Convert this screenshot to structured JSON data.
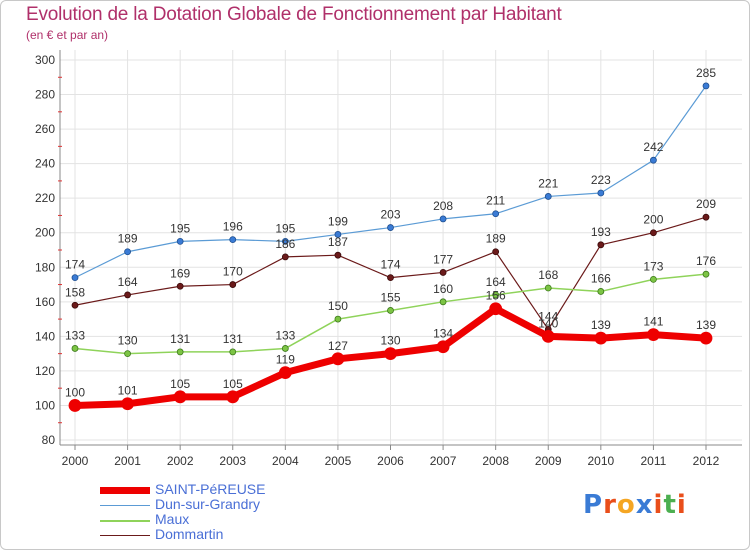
{
  "header": {
    "title": "Evolution de la Dotation Globale de Fonctionnement par Habitant",
    "subtitle": "(en € et par an)"
  },
  "logo": {
    "text": "Proxiti",
    "colors": [
      "#3a7bd5",
      "#e94e1b",
      "#f5a623",
      "#3a7bd5",
      "#e94e1b",
      "#4caf50",
      "#e94e1b"
    ]
  },
  "chart_data": {
    "type": "line",
    "title": "Evolution de la Dotation Globale de Fonctionnement par Habitant",
    "subtitle": "(en € et par an)",
    "x": [
      "2000",
      "2001",
      "2002",
      "2003",
      "2004",
      "2005",
      "2006",
      "2007",
      "2008",
      "2009",
      "2010",
      "2011",
      "2012"
    ],
    "ylim": [
      80,
      300
    ],
    "yticks": [
      80,
      100,
      120,
      140,
      160,
      180,
      200,
      220,
      240,
      260,
      280,
      300
    ],
    "grid": true,
    "legend_position": "bottom-left",
    "series": [
      {
        "name": "SAINT-PéREUSE",
        "color": "#ee0000",
        "values": [
          100,
          101,
          105,
          105,
          119,
          127,
          130,
          134,
          156,
          140,
          139,
          141,
          139
        ]
      },
      {
        "name": "Dun-sur-Grandry",
        "color": "#5b9bd5",
        "values": [
          174,
          189,
          195,
          196,
          195,
          199,
          203,
          208,
          211,
          221,
          223,
          242,
          285
        ]
      },
      {
        "name": "Maux",
        "color": "#8fd35a",
        "values": [
          133,
          130,
          131,
          131,
          133,
          150,
          155,
          160,
          164,
          168,
          166,
          173,
          176
        ]
      },
      {
        "name": "Dommartin",
        "color": "#6b1a1a",
        "values": [
          158,
          164,
          169,
          170,
          186,
          187,
          174,
          177,
          189,
          144,
          193,
          200,
          209
        ]
      }
    ]
  }
}
